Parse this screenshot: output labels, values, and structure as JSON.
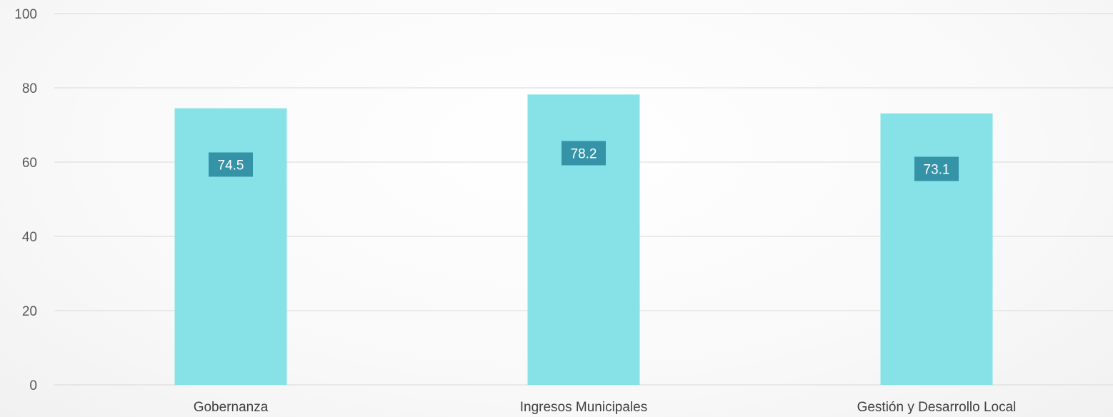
{
  "chart_data": {
    "type": "bar",
    "categories": [
      "Gobernanza",
      "Ingresos Municipales",
      "Gestión y Desarrollo Local"
    ],
    "values": [
      74.5,
      78.2,
      73.1
    ],
    "data_labels": [
      "74.5",
      "78.2",
      "73.1"
    ],
    "yticks": [
      "0",
      "20",
      "40",
      "60",
      "80",
      "100"
    ],
    "ylim": [
      0,
      100
    ],
    "title": "",
    "xlabel": "",
    "ylabel": "",
    "grid": true,
    "legend": "none",
    "bar_color": "#86E2E6",
    "data_label_bg": "#3593A8"
  }
}
